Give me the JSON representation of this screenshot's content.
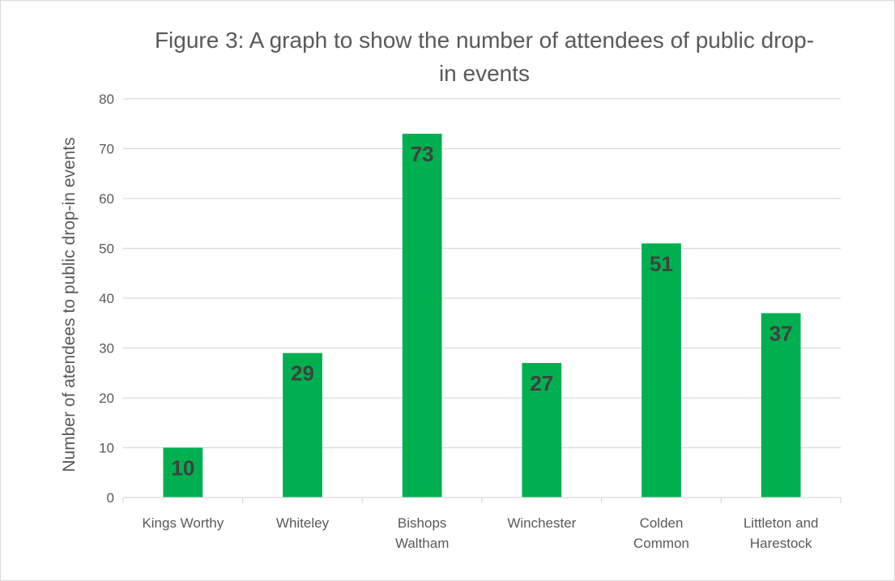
{
  "chart_data": {
    "type": "bar",
    "title_lines": [
      "Figure 3: A graph to show the number of attendees of public drop-",
      "in events"
    ],
    "xlabel": "",
    "ylabel": "Number of atendees to public drop-in events",
    "categories": [
      [
        "Kings Worthy"
      ],
      [
        "Whiteley"
      ],
      [
        "Bishops",
        "Waltham"
      ],
      [
        "Winchester"
      ],
      [
        "Colden",
        "Common"
      ],
      [
        "Littleton and",
        "Harestock"
      ]
    ],
    "values": [
      10,
      29,
      73,
      27,
      51,
      37
    ],
    "data_labels": [
      "10",
      "29",
      "73",
      "27",
      "51",
      "37"
    ],
    "ylim": [
      0,
      80
    ],
    "yticks": [
      0,
      10,
      20,
      30,
      40,
      50,
      60,
      70,
      80
    ],
    "grid": true,
    "legend": "none",
    "bar_color": "#00b050",
    "grid_color": "#d9d9d9",
    "text_color": "#595959",
    "label_color": "#404040"
  }
}
